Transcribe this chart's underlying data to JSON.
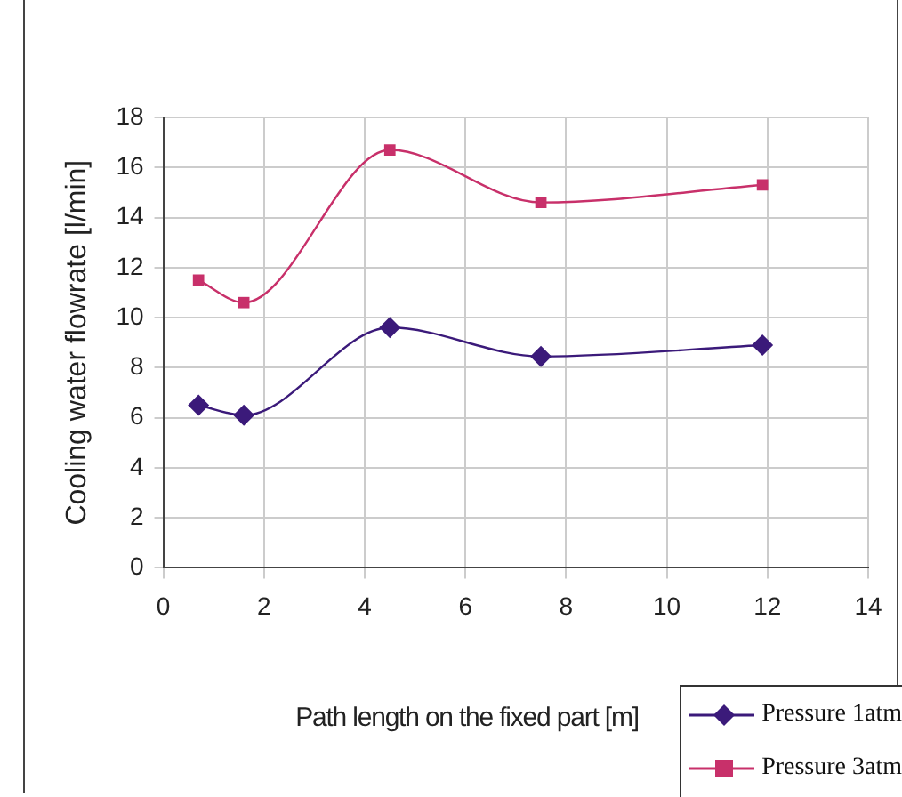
{
  "chart_data": {
    "type": "line",
    "xlabel": "Path length on the fixed part [m]",
    "ylabel": "Cooling water flowrate [l/min]",
    "xlim": [
      0,
      14
    ],
    "xticks": [
      0,
      2,
      4,
      6,
      8,
      10,
      12,
      14
    ],
    "ylim": [
      0,
      18
    ],
    "yticks": [
      0,
      2,
      4,
      6,
      8,
      10,
      12,
      14,
      16,
      18
    ],
    "grid": true,
    "legend": "bottom right",
    "series": [
      {
        "name": "Pressure 1atm",
        "color": "#3b1a7a",
        "marker": "diamond",
        "x": [
          0.7,
          1.6,
          4.5,
          7.5,
          11.9
        ],
        "values": [
          6.5,
          6.1,
          9.6,
          8.45,
          8.9
        ]
      },
      {
        "name": "Pressure 3atm",
        "color": "#c8306a",
        "marker": "square",
        "x": [
          0.7,
          1.6,
          4.5,
          7.5,
          11.9
        ],
        "values": [
          11.5,
          10.6,
          16.7,
          14.6,
          15.3
        ]
      }
    ]
  }
}
